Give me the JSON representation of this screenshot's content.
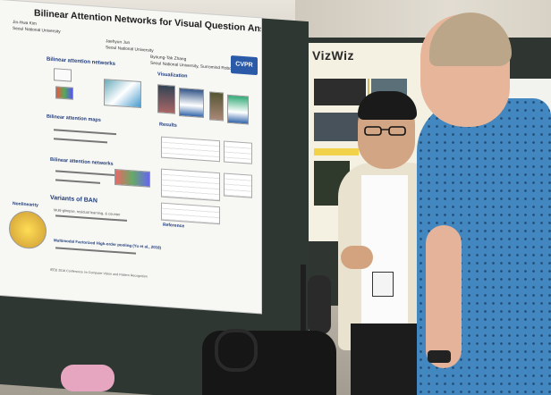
{
  "poster_left": {
    "title": "Bilinear Attention Networks for Visual Question Answering",
    "author_1": "Jin-Hwa Kim",
    "affil_1": "Seoul National University",
    "author_2": "Jaehyun Jun",
    "affil_2": "Seoul National University",
    "author_3": "Byoung-Tak Zhang",
    "affil_3": "Seoul National University, Surromind Robotics",
    "logo": "CVPR",
    "sec_bilinear": "Bilinear attention networks",
    "sec_visualization": "Visualization",
    "sec_results": "Results",
    "sec_maps": "Bilinear attention maps",
    "sec_networks": "Bilinear attention networks",
    "sec_variants": "Variants of BAN",
    "sec_reference": "Reference",
    "txt_residual": "Multi-glimpse, residual learning, & counter",
    "txt_mfb": "Multimodal Factorized High-order pooling (Yu et al., 2018)",
    "txt_nonlinearity": "Nonlinearity",
    "footer": "IEEE 2018 Conference on Computer Vision and Pattern Recognition"
  },
  "poster_right": {
    "title": "VizWiz"
  }
}
